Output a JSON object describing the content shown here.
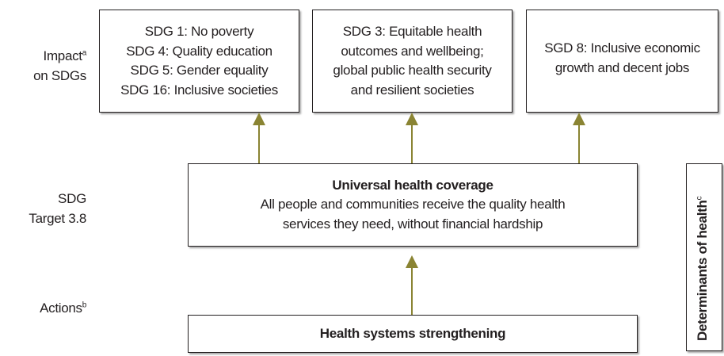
{
  "row_labels": {
    "impact": {
      "text": "Impact",
      "sup": "a",
      "line2": "on SDGs"
    },
    "target": {
      "line1": "SDG",
      "line2": "Target 3.8"
    },
    "actions": {
      "text": "Actions",
      "sup": "b"
    }
  },
  "impact_boxes": [
    {
      "lines": [
        "SDG 1: No poverty",
        "SDG 4: Quality education",
        "SDG 5: Gender equality",
        "SDG 16: Inclusive societies"
      ]
    },
    {
      "lines": [
        "SDG 3: Equitable health",
        "outcomes and wellbeing;",
        "global public health security",
        "and resilient societies"
      ]
    },
    {
      "lines": [
        "SGD 8: Inclusive economic",
        "growth and decent jobs"
      ]
    }
  ],
  "uhc_box": {
    "title": "Universal health coverage",
    "lines": [
      "All people and communities receive the quality health",
      "services they need, without financial hardship"
    ]
  },
  "action_box": {
    "title": "Health systems strengthening"
  },
  "side_label": {
    "text": "Determinants of health",
    "sup": "c"
  },
  "colors": {
    "arrow": "#8a8433",
    "border": "#231f20",
    "text": "#231f20"
  }
}
